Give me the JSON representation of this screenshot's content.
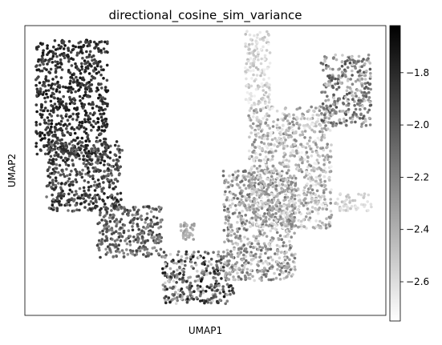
{
  "chart_data": {
    "type": "scatter",
    "title": "directional_cosine_sim_variance",
    "xlabel": "UMAP1",
    "ylabel": "UMAP2",
    "grid": false,
    "x_ticks_shown": false,
    "y_ticks_shown": false,
    "colorbar": {
      "colormap": "Greys",
      "range": [
        -2.75,
        -1.62
      ],
      "ticks": [
        -1.8,
        -2.0,
        -2.2,
        -2.4,
        -2.6
      ],
      "tick_labels": [
        "−1.8",
        "−2.0",
        "−2.2",
        "−2.4",
        "−2.6"
      ]
    },
    "point_regions": [
      {
        "region": "left upper lobe",
        "x_range": [
          0.03,
          0.23
        ],
        "y_range": [
          0.55,
          0.95
        ],
        "value_range": [
          -1.98,
          -1.68
        ]
      },
      {
        "region": "left lower lobe",
        "x_range": [
          0.06,
          0.27
        ],
        "y_range": [
          0.36,
          0.6
        ],
        "value_range": [
          -2.15,
          -1.72
        ]
      },
      {
        "region": "lower left arm",
        "x_range": [
          0.2,
          0.38
        ],
        "y_range": [
          0.2,
          0.38
        ],
        "value_range": [
          -2.3,
          -1.85
        ]
      },
      {
        "region": "bottom trough",
        "x_range": [
          0.38,
          0.58
        ],
        "y_range": [
          0.04,
          0.22
        ],
        "value_range": [
          -2.6,
          -1.7
        ]
      },
      {
        "region": "right lower arm",
        "x_range": [
          0.55,
          0.75
        ],
        "y_range": [
          0.12,
          0.5
        ],
        "value_range": [
          -2.6,
          -2.05
        ]
      },
      {
        "region": "right central body",
        "x_range": [
          0.62,
          0.85
        ],
        "y_range": [
          0.3,
          0.72
        ],
        "value_range": [
          -2.7,
          -2.2
        ]
      },
      {
        "region": "right upper arm",
        "x_range": [
          0.82,
          0.96
        ],
        "y_range": [
          0.65,
          0.9
        ],
        "value_range": [
          -2.55,
          -1.95
        ]
      },
      {
        "region": "top spike",
        "x_range": [
          0.61,
          0.68
        ],
        "y_range": [
          0.72,
          0.98
        ],
        "value_range": [
          -2.7,
          -2.45
        ]
      },
      {
        "region": "right tail",
        "x_range": [
          0.86,
          0.96
        ],
        "y_range": [
          0.36,
          0.42
        ],
        "value_range": [
          -2.65,
          -2.45
        ]
      },
      {
        "region": "small island",
        "x_range": [
          0.43,
          0.47
        ],
        "y_range": [
          0.26,
          0.32
        ],
        "value_range": [
          -2.45,
          -2.25
        ]
      }
    ]
  }
}
